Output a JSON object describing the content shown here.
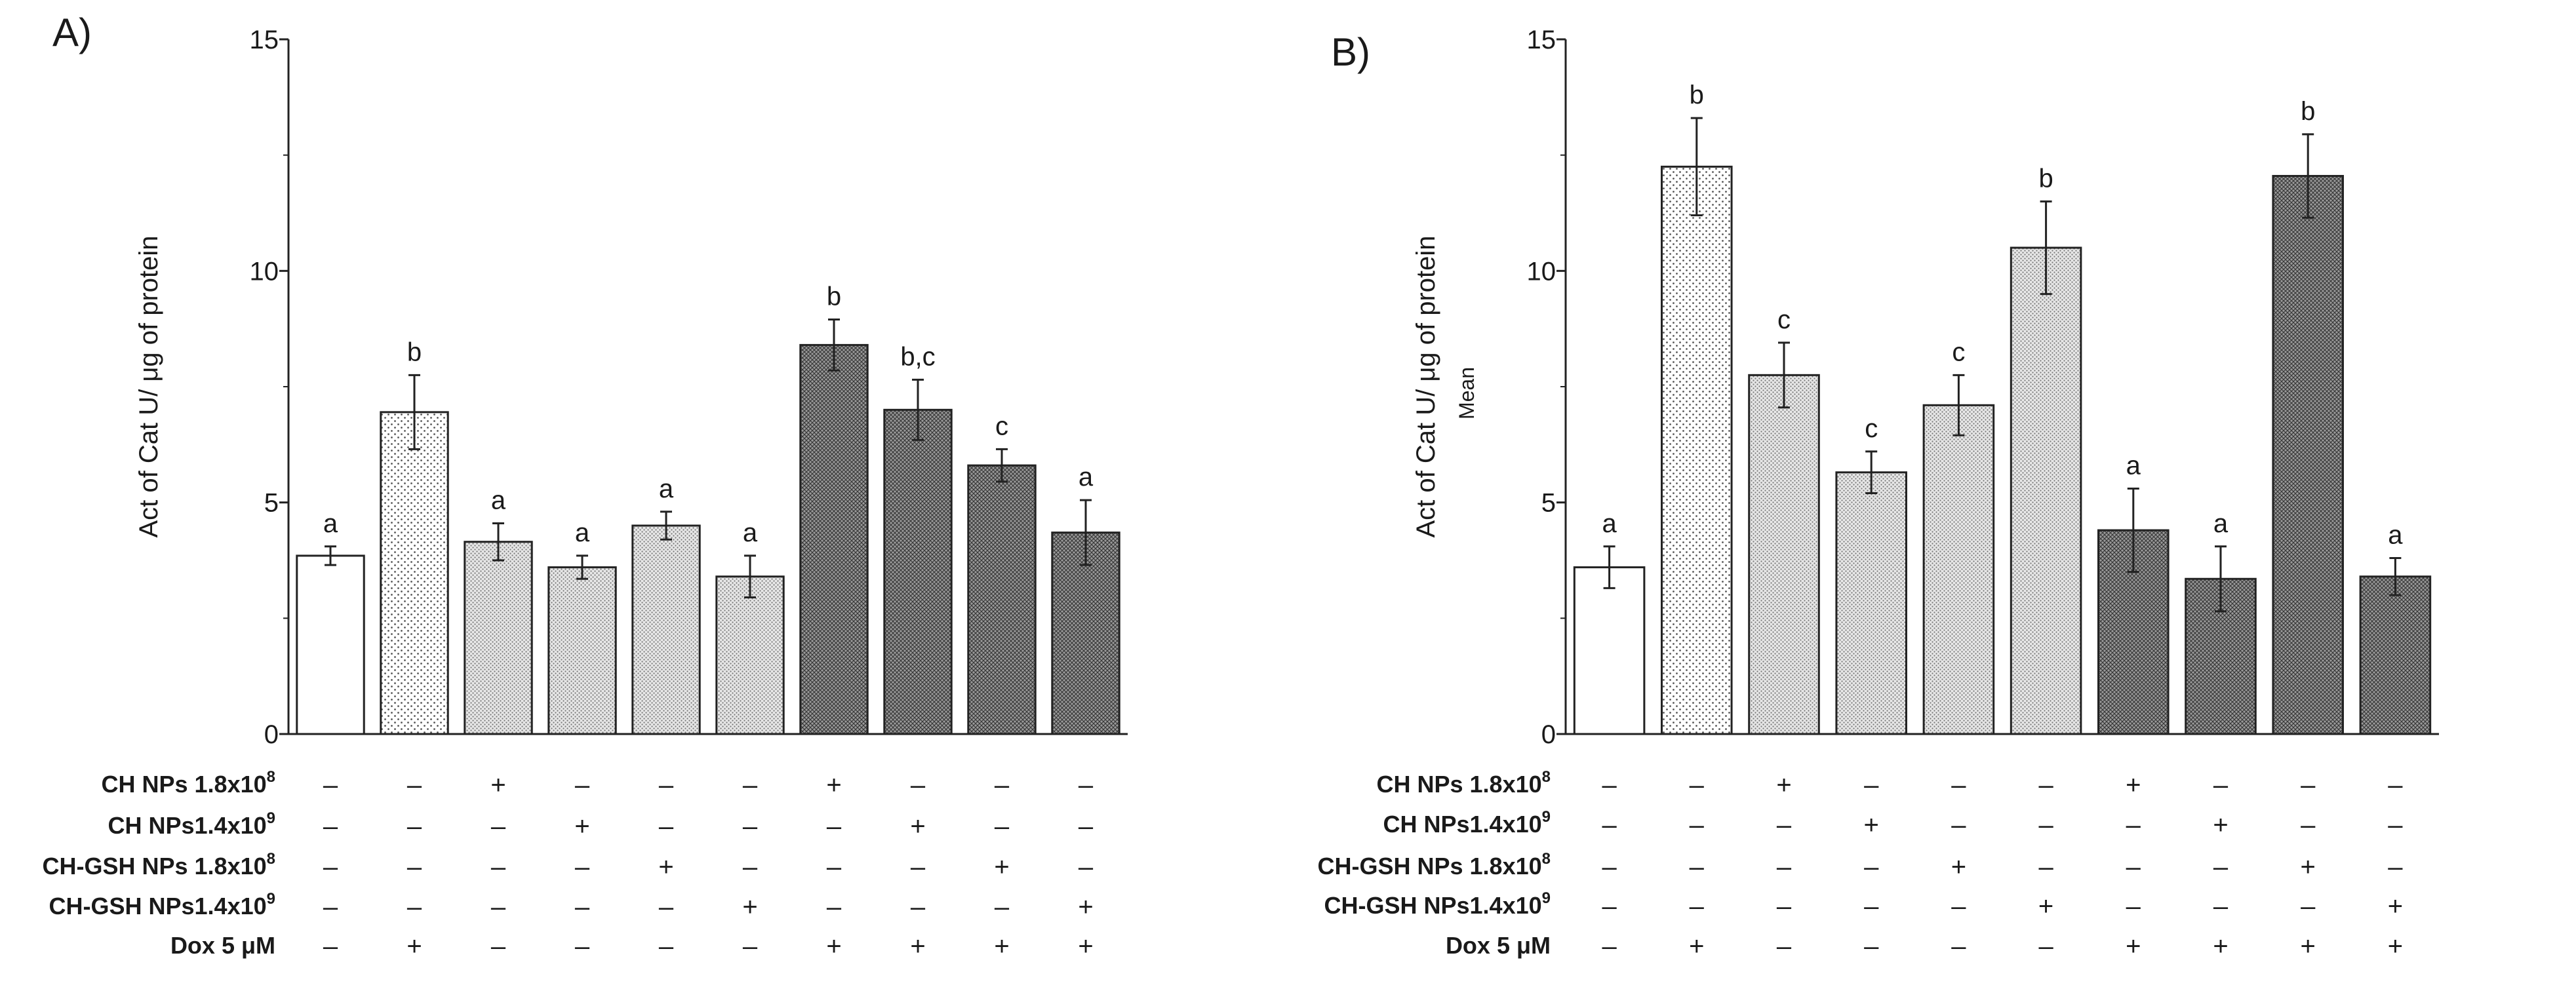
{
  "panels": [
    {
      "label": "A)",
      "chart_data": {
        "type": "bar",
        "ylabel": "Act of Cat U/ μg of protein",
        "ylim": [
          0,
          15
        ],
        "yticks": [
          0,
          5,
          10,
          15
        ],
        "values": [
          3.85,
          6.95,
          4.15,
          3.6,
          4.5,
          3.4,
          8.4,
          7.0,
          5.8,
          4.35
        ],
        "errors": [
          0.2,
          0.8,
          0.4,
          0.25,
          0.3,
          0.45,
          0.55,
          0.65,
          0.35,
          0.7
        ],
        "significance": [
          "a",
          "b",
          "a",
          "a",
          "a",
          "a",
          "b",
          "b,c",
          "c",
          "a"
        ],
        "fills": [
          "white",
          "dots",
          "dense",
          "dense",
          "dense",
          "dense",
          "cross",
          "cross",
          "cross",
          "cross"
        ]
      },
      "treatments": [
        {
          "name": "CH NPs 1.8x10",
          "exp": "8",
          "marks": [
            "–",
            "–",
            "+",
            "–",
            "–",
            "–",
            "+",
            "–",
            "–",
            "–"
          ]
        },
        {
          "name": "CH NPs1.4x10",
          "exp": "9",
          "marks": [
            "–",
            "–",
            "–",
            "+",
            "–",
            "–",
            "–",
            "+",
            "–",
            "–"
          ]
        },
        {
          "name": "CH-GSH NPs 1.8x10",
          "exp": "8",
          "marks": [
            "–",
            "–",
            "–",
            "–",
            "+",
            "–",
            "–",
            "–",
            "+",
            "–"
          ]
        },
        {
          "name": "CH-GSH NPs1.4x10",
          "exp": "9",
          "marks": [
            "–",
            "–",
            "–",
            "–",
            "–",
            "+",
            "–",
            "–",
            "–",
            "+"
          ]
        },
        {
          "name": "Dox 5 μM",
          "exp": "",
          "marks": [
            "–",
            "+",
            "–",
            "–",
            "–",
            "–",
            "+",
            "+",
            "+",
            "+"
          ]
        }
      ]
    },
    {
      "label": "B)",
      "chart_data": {
        "type": "bar",
        "ylabel": "Act of Cat U/ μg of protein",
        "ylabel2": "Mean",
        "ylim": [
          0,
          15
        ],
        "yticks": [
          0,
          5,
          10,
          15
        ],
        "values": [
          3.6,
          12.25,
          7.75,
          5.65,
          7.1,
          10.5,
          4.4,
          3.35,
          12.05,
          3.4
        ],
        "errors": [
          0.45,
          1.05,
          0.7,
          0.45,
          0.65,
          1.0,
          0.9,
          0.7,
          0.9,
          0.4
        ],
        "significance": [
          "a",
          "b",
          "c",
          "c",
          "c",
          "b",
          "a",
          "a",
          "b",
          "a"
        ],
        "fills": [
          "white",
          "dots",
          "dense",
          "dense",
          "dense",
          "dense",
          "cross",
          "cross",
          "cross",
          "cross"
        ]
      },
      "treatments": [
        {
          "name": "CH NPs 1.8x10",
          "exp": "8",
          "marks": [
            "–",
            "–",
            "+",
            "–",
            "–",
            "–",
            "+",
            "–",
            "–",
            "–"
          ]
        },
        {
          "name": "CH NPs1.4x10",
          "exp": "9",
          "marks": [
            "–",
            "–",
            "–",
            "+",
            "–",
            "–",
            "–",
            "+",
            "–",
            "–"
          ]
        },
        {
          "name": "CH-GSH NPs 1.8x10",
          "exp": "8",
          "marks": [
            "–",
            "–",
            "–",
            "–",
            "+",
            "–",
            "–",
            "–",
            "+",
            "–"
          ]
        },
        {
          "name": "CH-GSH NPs1.4x10",
          "exp": "9",
          "marks": [
            "–",
            "–",
            "–",
            "–",
            "–",
            "+",
            "–",
            "–",
            "–",
            "+"
          ]
        },
        {
          "name": "Dox 5 μM",
          "exp": "",
          "marks": [
            "–",
            "+",
            "–",
            "–",
            "–",
            "–",
            "+",
            "+",
            "+",
            "+"
          ]
        }
      ]
    }
  ]
}
